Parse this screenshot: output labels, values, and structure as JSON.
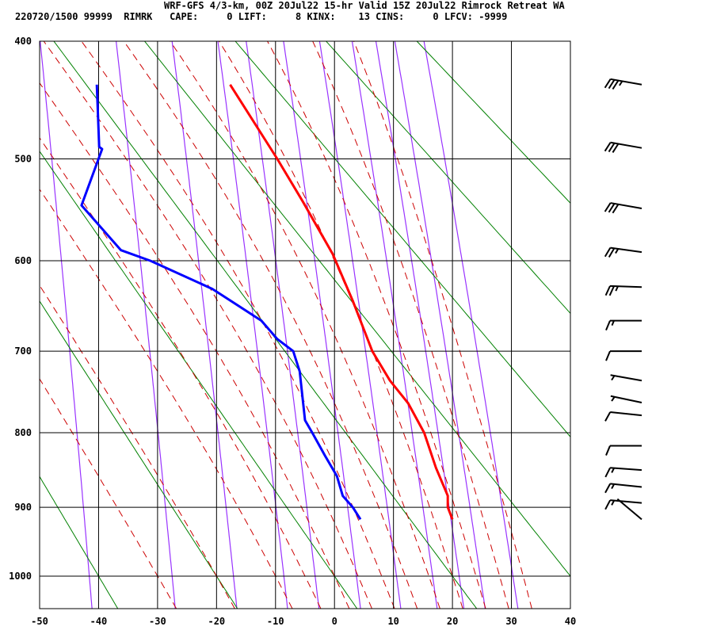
{
  "header": {
    "title": "WRF-GFS 4/3-km, 00Z 20Jul22 15-hr Valid 15Z 20Jul22 Rimrock Retreat WA",
    "subtitle": "220720/1500 99999  RIMRK   CAPE:     0 LIFT:     8 KINX:    13 CINS:     0 LFCV: -9999"
  },
  "chart_data": {
    "type": "line",
    "diagram": "Stuve thermodynamic sounding",
    "xlabel": "",
    "ylabel": "",
    "xlim": [
      -50,
      40
    ],
    "plim": [
      400,
      1050
    ],
    "x_ticks": [
      "-50",
      "-40",
      "-30",
      "-20",
      "-10",
      "0",
      "10",
      "20",
      "30",
      "40"
    ],
    "y_ticks": [
      "400",
      "500",
      "600",
      "700",
      "800",
      "900",
      "1000"
    ],
    "grid": true,
    "colors": {
      "temperature": "#ff0000",
      "dewpoint": "#0000ff",
      "dry_adiabat": "#008000",
      "moist_adiabat": "#cc0000",
      "mixing_ratio": "#9933ff",
      "grid": "#000000",
      "wind_barb": "#000000"
    },
    "dry_adiabat_1000mb_temps_c": [
      -40,
      -20,
      0,
      20,
      40,
      60,
      80,
      100
    ],
    "moist_adiabat_1000mb_temps_c": [
      -30,
      -20,
      -10,
      -5,
      0,
      4,
      8,
      12,
      16,
      20,
      24,
      28,
      32
    ],
    "mixing_ratio_lines_gkg": [
      0.1,
      0.4,
      1,
      2,
      3,
      5,
      8,
      12,
      16,
      20,
      28
    ],
    "series": [
      {
        "name": "temperature",
        "p": [
          435,
          500,
          541,
          593,
          643,
          700,
          735,
          763,
          800,
          846,
          884,
          900,
          917
        ],
        "t": [
          -17.7,
          -9.7,
          -5.3,
          -0.3,
          3.1,
          6.4,
          9.4,
          12.5,
          15.2,
          17.2,
          19.2,
          19.2,
          20.0
        ]
      },
      {
        "name": "dewpoint",
        "p": [
          435,
          489,
          491,
          544,
          589,
          600,
          630,
          665,
          686,
          700,
          724,
          784,
          801,
          830,
          857,
          884,
          900,
          917
        ],
        "t": [
          -40.3,
          -39.9,
          -39.4,
          -42.9,
          -36.2,
          -31.2,
          -20.7,
          -12.4,
          -9.7,
          -7.0,
          -5.9,
          -5.0,
          -3.7,
          -1.6,
          0.4,
          1.4,
          3.1,
          4.4
        ]
      }
    ],
    "wind_barbs": [
      {
        "p": 435,
        "dir": 280,
        "kt": 35
      },
      {
        "p": 490,
        "dir": 280,
        "kt": 30
      },
      {
        "p": 547,
        "dir": 280,
        "kt": 30
      },
      {
        "p": 591,
        "dir": 278,
        "kt": 25
      },
      {
        "p": 628,
        "dir": 272,
        "kt": 25
      },
      {
        "p": 665,
        "dir": 270,
        "kt": 15
      },
      {
        "p": 700,
        "dir": 270,
        "kt": 10
      },
      {
        "p": 735,
        "dir": 280,
        "kt": 5
      },
      {
        "p": 762,
        "dir": 282,
        "kt": 5
      },
      {
        "p": 778,
        "dir": 276,
        "kt": 10
      },
      {
        "p": 817,
        "dir": 270,
        "kt": 10
      },
      {
        "p": 849,
        "dir": 274,
        "kt": 15
      },
      {
        "p": 872,
        "dir": 276,
        "kt": 15
      },
      {
        "p": 894,
        "dir": 275,
        "kt": 15
      },
      {
        "p": 917,
        "dir": 310,
        "kt": 2
      }
    ]
  }
}
